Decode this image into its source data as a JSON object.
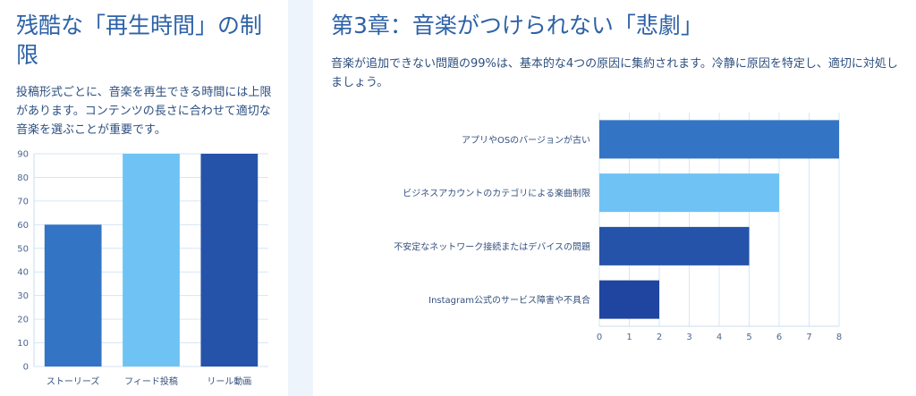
{
  "left": {
    "title": "残酷な「再生時間」の制限",
    "description": "投稿形式ごとに、音楽を再生できる時間には上限があります。コンテンツの長さに合わせて適切な音楽を選ぶことが重要です。"
  },
  "right": {
    "title": "第3章：音楽がつけられない「悲劇」",
    "description": "音楽が追加できない問題の99%は、基本的な4つの原因に集約されます。冷静に原因を特定し、適切に対処しましょう。"
  },
  "chart_data": [
    {
      "type": "bar",
      "orientation": "vertical",
      "categories": [
        "ストーリーズ",
        "フィード投稿",
        "リール動画"
      ],
      "values": [
        60,
        90,
        90
      ],
      "colors": [
        "#3474c4",
        "#6ec3f4",
        "#2553a9"
      ],
      "ylim": [
        0,
        90
      ],
      "yticks": [
        0,
        10,
        20,
        30,
        40,
        50,
        60,
        70,
        80,
        90
      ],
      "grid": true,
      "title": "",
      "xlabel": "",
      "ylabel": ""
    },
    {
      "type": "bar",
      "orientation": "horizontal",
      "categories": [
        "アプリやOSのバージョンが古い",
        "ビジネスアカウントのカテゴリによる楽曲制限",
        "不安定なネットワーク接続またはデバイスの問題",
        "Instagram公式のサービス障害や不具合"
      ],
      "values": [
        8,
        6,
        5,
        2
      ],
      "colors": [
        "#3474c4",
        "#6ec3f4",
        "#2553a9",
        "#1f45a0"
      ],
      "xlim": [
        0,
        8
      ],
      "xticks": [
        0,
        1,
        2,
        3,
        4,
        5,
        6,
        7,
        8
      ],
      "grid": true,
      "title": "",
      "xlabel": "",
      "ylabel": ""
    }
  ]
}
